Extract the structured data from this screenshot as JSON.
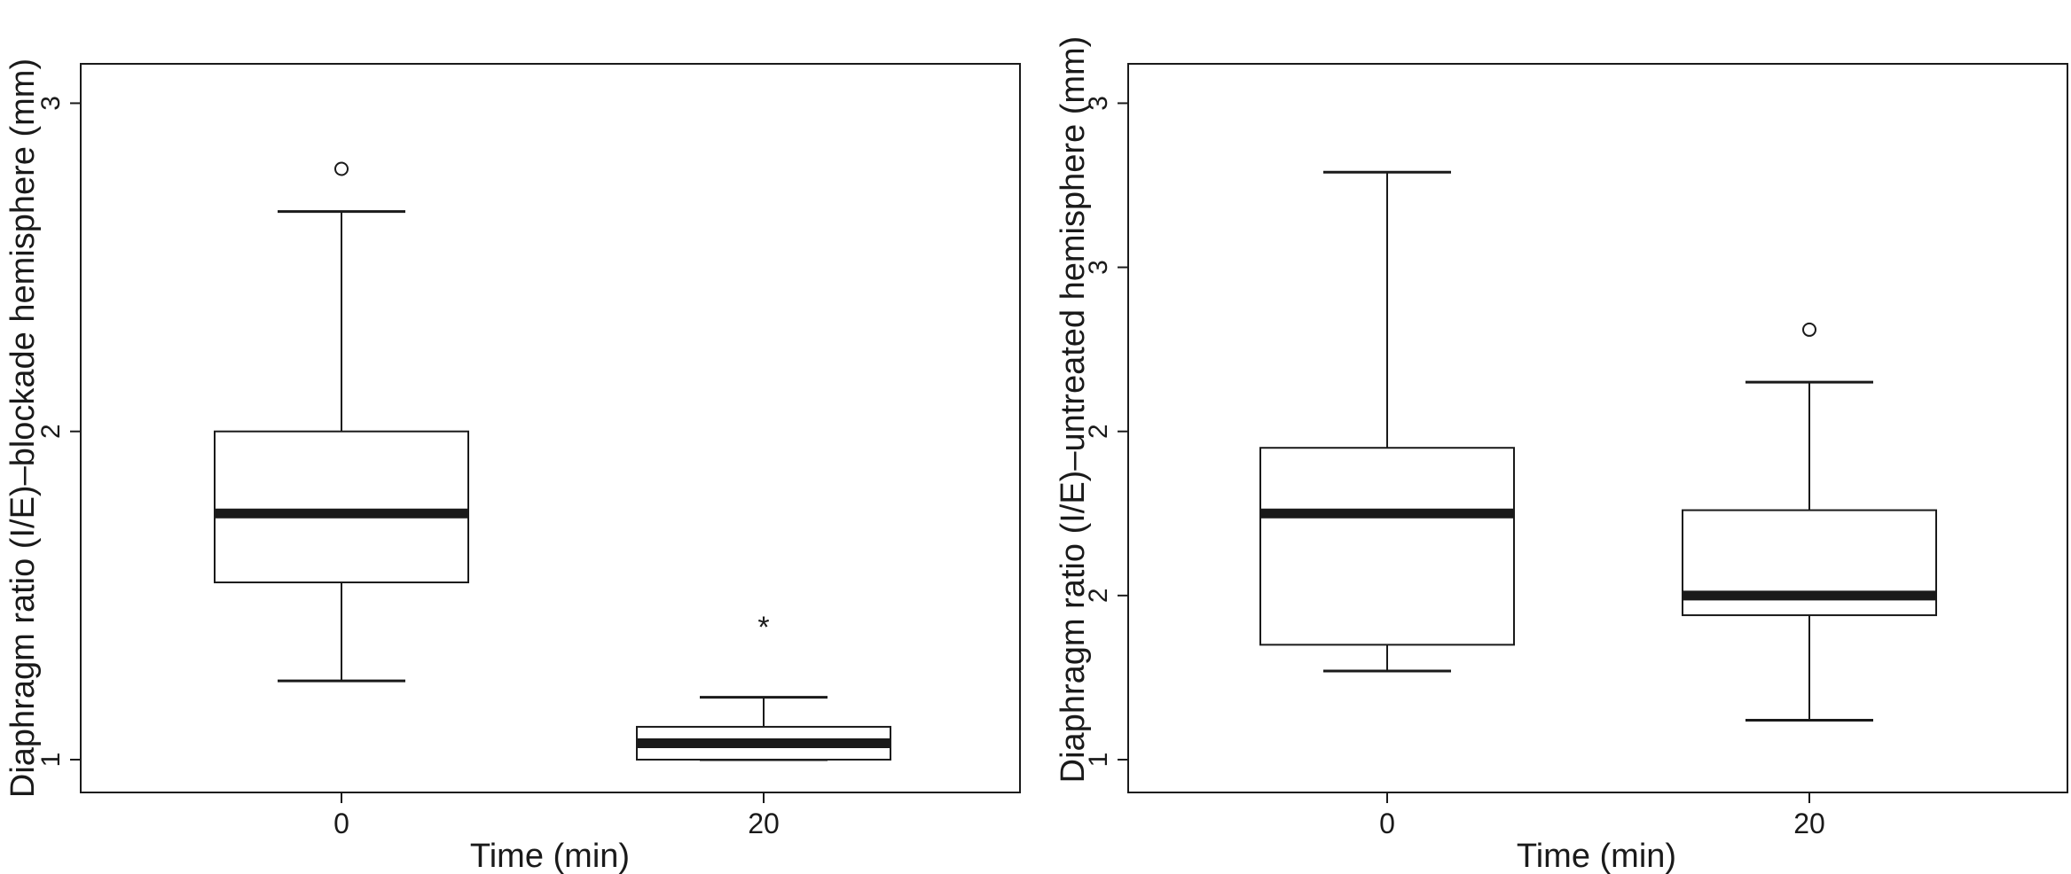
{
  "chart_data": [
    {
      "type": "box",
      "xlabel": "Time (min)",
      "ylabel": "Diaphragm ratio (I/E)–blockade hemisphere (mm)",
      "ytick_labels": [
        "1",
        "2",
        "3"
      ],
      "categories": [
        "0",
        "20"
      ],
      "ylim": [
        0.9,
        3.12
      ],
      "boxes": [
        {
          "category": "0",
          "whisker_low": 1.24,
          "q1": 1.54,
          "median": 1.75,
          "q3": 2.0,
          "whisker_high": 2.67,
          "outliers": [
            {
              "value": 2.8,
              "marker": "o"
            }
          ]
        },
        {
          "category": "20",
          "whisker_low": 1.0,
          "q1": 1.0,
          "median": 1.05,
          "q3": 1.1,
          "whisker_high": 1.19,
          "outliers": [
            {
              "value": 1.41,
              "marker": "*"
            }
          ]
        }
      ]
    },
    {
      "type": "box",
      "xlabel": "Time (min)",
      "ylabel": "Diaphragm ratio (I/E)–untreated hemisphere (mm)",
      "ytick_labels": [
        "1",
        "2",
        "2",
        "3",
        "3"
      ],
      "categories": [
        "0",
        "20"
      ],
      "ylim": [
        0.9,
        3.12
      ],
      "boxes": [
        {
          "category": "0",
          "whisker_low": 1.27,
          "q1": 1.35,
          "median": 1.75,
          "q3": 1.95,
          "whisker_high": 2.79,
          "outliers": []
        },
        {
          "category": "20",
          "whisker_low": 1.12,
          "q1": 1.44,
          "median": 1.5,
          "q3": 1.76,
          "whisker_high": 2.15,
          "outliers": [
            {
              "value": 2.31,
              "marker": "o"
            }
          ]
        }
      ]
    }
  ]
}
